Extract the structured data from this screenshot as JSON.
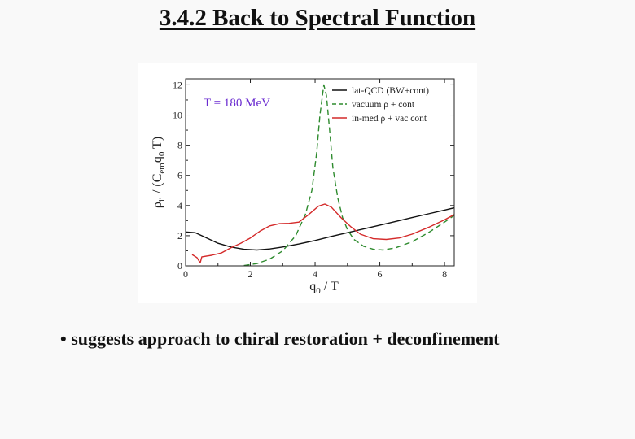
{
  "slide": {
    "title": "3.4.2  Back to Spectral Function",
    "bullet": "• suggests approach to chiral restoration + deconfinement"
  },
  "chart_data": {
    "type": "line",
    "annotation": "T = 180 MeV",
    "annotation_color": "#6a2bd0",
    "xlabel": {
      "main": "q",
      "sub": "0",
      "tail": " / T"
    },
    "ylabel": {
      "a": "ρ",
      "a_sub": "ii",
      "b": " / (C",
      "b_sub": "em",
      "c": "q",
      "c_sub": "0",
      "d": " T)"
    },
    "xlim": [
      0,
      8.3
    ],
    "ylim": [
      0,
      12.4
    ],
    "xticks": [
      0,
      2,
      4,
      6,
      8
    ],
    "yticks": [
      0,
      2,
      4,
      6,
      8,
      10,
      12
    ],
    "grid": false,
    "legend_position": "top-right",
    "series": [
      {
        "name": "lat-QCD (BW+cont)",
        "color": "#111111",
        "dash": "solid",
        "points": [
          [
            0,
            2.25
          ],
          [
            0.3,
            2.2
          ],
          [
            0.6,
            1.9
          ],
          [
            1.0,
            1.5
          ],
          [
            1.4,
            1.25
          ],
          [
            1.8,
            1.1
          ],
          [
            2.2,
            1.05
          ],
          [
            2.6,
            1.12
          ],
          [
            3.0,
            1.25
          ],
          [
            3.5,
            1.45
          ],
          [
            4.0,
            1.68
          ],
          [
            4.5,
            1.95
          ],
          [
            5.0,
            2.2
          ],
          [
            5.5,
            2.45
          ],
          [
            6.0,
            2.7
          ],
          [
            6.5,
            2.95
          ],
          [
            7.0,
            3.2
          ],
          [
            7.5,
            3.45
          ],
          [
            8.0,
            3.7
          ],
          [
            8.3,
            3.85
          ]
        ]
      },
      {
        "name": "vacuum ρ + cont",
        "color": "#2e8b2e",
        "dash": "dashed",
        "points": [
          [
            1.8,
            0.02
          ],
          [
            2.2,
            0.15
          ],
          [
            2.6,
            0.45
          ],
          [
            3.0,
            1.0
          ],
          [
            3.4,
            2.0
          ],
          [
            3.7,
            3.4
          ],
          [
            3.9,
            5.0
          ],
          [
            4.05,
            7.5
          ],
          [
            4.15,
            10.0
          ],
          [
            4.27,
            12.0
          ],
          [
            4.35,
            11.3
          ],
          [
            4.45,
            9.0
          ],
          [
            4.55,
            6.5
          ],
          [
            4.7,
            4.5
          ],
          [
            4.85,
            3.2
          ],
          [
            5.0,
            2.4
          ],
          [
            5.2,
            1.75
          ],
          [
            5.5,
            1.3
          ],
          [
            5.8,
            1.1
          ],
          [
            6.1,
            1.05
          ],
          [
            6.5,
            1.2
          ],
          [
            7.0,
            1.6
          ],
          [
            7.5,
            2.2
          ],
          [
            8.0,
            2.9
          ],
          [
            8.3,
            3.35
          ]
        ]
      },
      {
        "name": "in-med ρ + vac cont",
        "color": "#d42a2a",
        "dash": "solid",
        "points": [
          [
            0.2,
            0.75
          ],
          [
            0.35,
            0.55
          ],
          [
            0.45,
            0.2
          ],
          [
            0.5,
            0.6
          ],
          [
            0.8,
            0.7
          ],
          [
            1.1,
            0.85
          ],
          [
            1.4,
            1.2
          ],
          [
            1.7,
            1.5
          ],
          [
            2.0,
            1.85
          ],
          [
            2.3,
            2.3
          ],
          [
            2.6,
            2.65
          ],
          [
            2.9,
            2.8
          ],
          [
            3.2,
            2.82
          ],
          [
            3.5,
            2.9
          ],
          [
            3.8,
            3.4
          ],
          [
            4.1,
            3.95
          ],
          [
            4.3,
            4.1
          ],
          [
            4.5,
            3.9
          ],
          [
            4.8,
            3.2
          ],
          [
            5.1,
            2.6
          ],
          [
            5.4,
            2.1
          ],
          [
            5.8,
            1.8
          ],
          [
            6.2,
            1.75
          ],
          [
            6.6,
            1.85
          ],
          [
            7.0,
            2.1
          ],
          [
            7.5,
            2.55
          ],
          [
            8.0,
            3.05
          ],
          [
            8.3,
            3.4
          ]
        ]
      }
    ]
  }
}
